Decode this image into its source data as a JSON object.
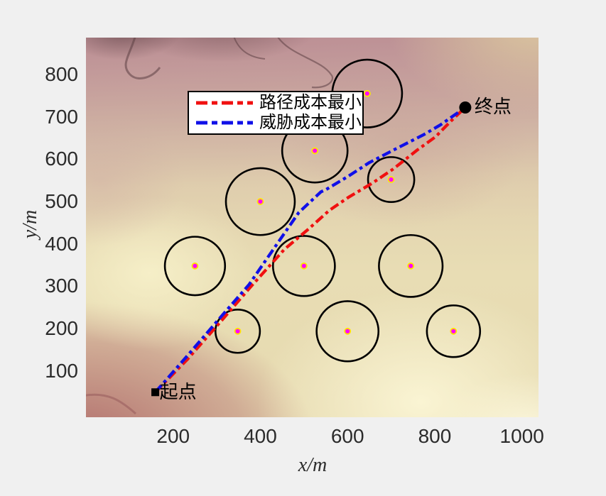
{
  "window": {
    "background": "#f0f0f0",
    "plot_background": "terrain-elevation-colormap"
  },
  "legend": {
    "position": "top-left",
    "items": [
      {
        "label": "路径成本最小",
        "color": "#f01010",
        "line_style": "dash-dot"
      },
      {
        "label": "威胁成本最小",
        "color": "#1010e8",
        "line_style": "dash-dot"
      }
    ]
  },
  "chart_data": {
    "type": "line",
    "title": "",
    "xlabel": "x/m",
    "ylabel": "y/m",
    "xlim": [
      0,
      1038
    ],
    "ylim": [
      -9,
      887
    ],
    "x_ticks": [
      200,
      400,
      600,
      800,
      1000
    ],
    "y_ticks": [
      100,
      200,
      300,
      400,
      500,
      600,
      700,
      800
    ],
    "grid": false,
    "legend_position": "top-left",
    "start_point": {
      "label": "起点",
      "x": 159,
      "y": 50,
      "marker": "black-square"
    },
    "end_point": {
      "label": "终点",
      "x": 870,
      "y": 722,
      "marker": "black-circle"
    },
    "threat_circles": [
      {
        "cx": 645,
        "cy": 755,
        "r": 80
      },
      {
        "cx": 525,
        "cy": 620,
        "r": 75
      },
      {
        "cx": 700,
        "cy": 552,
        "r": 53
      },
      {
        "cx": 400,
        "cy": 500,
        "r": 79
      },
      {
        "cx": 250,
        "cy": 348,
        "r": 69
      },
      {
        "cx": 500,
        "cy": 348,
        "r": 71
      },
      {
        "cx": 745,
        "cy": 348,
        "r": 73
      },
      {
        "cx": 348,
        "cy": 194,
        "r": 51
      },
      {
        "cx": 600,
        "cy": 194,
        "r": 71
      },
      {
        "cx": 843,
        "cy": 194,
        "r": 61
      }
    ],
    "circle_stroke_color": "#000000",
    "circle_center_color": "#ff00ff",
    "circle_center_ring_color": "#ffe400",
    "series": [
      {
        "name": "路径成本最小",
        "color": "#f01010",
        "line_style": "dash-dot",
        "points": [
          [
            159,
            50
          ],
          [
            233,
            128
          ],
          [
            305,
            212
          ],
          [
            377,
            298
          ],
          [
            455,
            387
          ],
          [
            509,
            434
          ],
          [
            558,
            479
          ],
          [
            602,
            510
          ],
          [
            656,
            543
          ],
          [
            705,
            577
          ],
          [
            759,
            621
          ],
          [
            802,
            653
          ],
          [
            838,
            691
          ],
          [
            870,
            722
          ]
        ]
      },
      {
        "name": "威胁成本最小",
        "color": "#1010e8",
        "line_style": "dash-dot",
        "points": [
          [
            159,
            50
          ],
          [
            230,
            133
          ],
          [
            302,
            219
          ],
          [
            374,
            304
          ],
          [
            445,
            410
          ],
          [
            488,
            474
          ],
          [
            539,
            523
          ],
          [
            550,
            528
          ],
          [
            602,
            560
          ],
          [
            650,
            592
          ],
          [
            710,
            624
          ],
          [
            775,
            658
          ],
          [
            813,
            681
          ],
          [
            870,
            722
          ]
        ]
      }
    ]
  }
}
